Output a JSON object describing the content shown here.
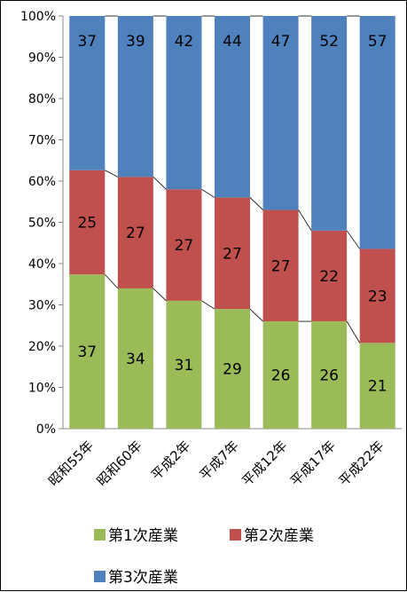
{
  "chart_data": {
    "type": "bar",
    "stacked": true,
    "percent": true,
    "categories": [
      "昭和55年",
      "昭和60年",
      "平成2年",
      "平成7年",
      "平成12年",
      "平成17年",
      "平成22年"
    ],
    "series": [
      {
        "name": "第1次産業",
        "color": "#9bbb59",
        "values": [
          37,
          34,
          31,
          29,
          26,
          26,
          21
        ]
      },
      {
        "name": "第2次産業",
        "color": "#c0504d",
        "values": [
          25,
          27,
          27,
          27,
          27,
          22,
          23
        ]
      },
      {
        "name": "第3次産業",
        "color": "#4f81bd",
        "values": [
          37,
          39,
          42,
          44,
          47,
          52,
          57
        ]
      }
    ],
    "y_ticks": [
      "0%",
      "10%",
      "20%",
      "30%",
      "40%",
      "50%",
      "60%",
      "70%",
      "80%",
      "90%",
      "100%"
    ],
    "ylim": [
      0,
      100
    ],
    "grid": false,
    "series_lines": true,
    "legend": "bottom"
  }
}
